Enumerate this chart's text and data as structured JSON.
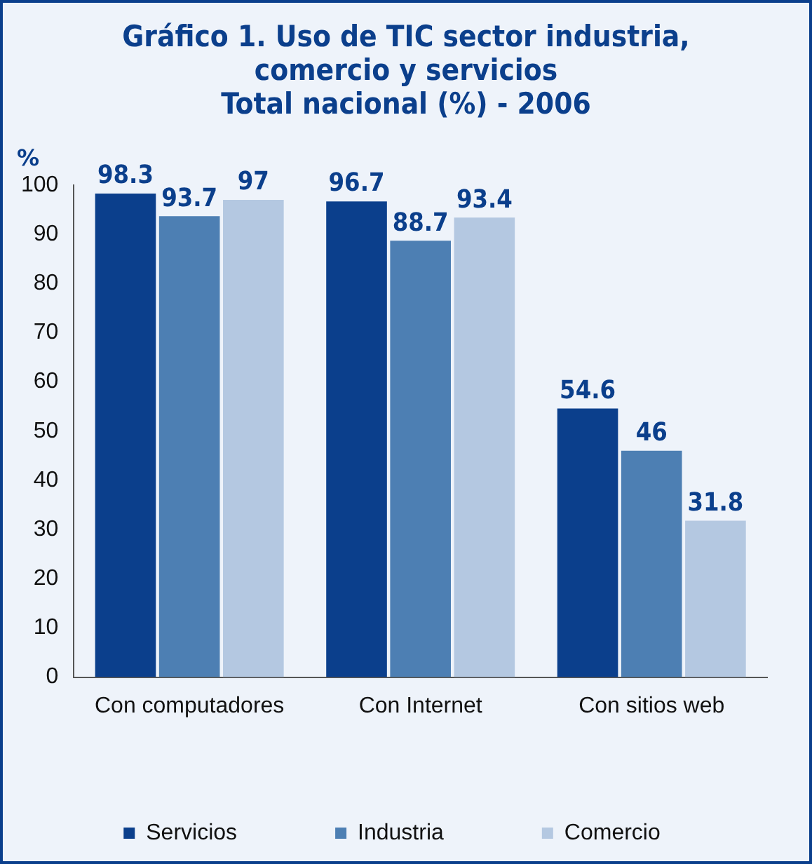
{
  "chart_data": {
    "type": "bar",
    "title": "Gráfico 1. Uso de TIC sector industria,\ncomercio y servicios\nTotal nacional (%) - 2006",
    "ylabel": "%",
    "categories": [
      "Con computadores",
      "Con Internet",
      "Con sitios web"
    ],
    "series": [
      {
        "name": "Servicios",
        "color": "#0b3f8c",
        "values": [
          98.3,
          96.7,
          54.6
        ]
      },
      {
        "name": "Industria",
        "color": "#4d7fb3",
        "values": [
          93.7,
          88.7,
          46
        ]
      },
      {
        "name": "Comercio",
        "color": "#b4c8e1",
        "values": [
          97,
          93.4,
          31.8
        ]
      }
    ],
    "ylim": [
      0,
      100
    ],
    "yticks": [
      0,
      10,
      20,
      30,
      40,
      50,
      60,
      70,
      80,
      90,
      100
    ],
    "grid": false,
    "legend": "bottom",
    "data_labels": true
  }
}
